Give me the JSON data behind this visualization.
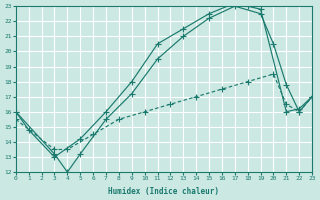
{
  "bg_color": "#cce8e2",
  "grid_color": "#b8d8d0",
  "line_color": "#1a7a6e",
  "xlim": [
    0,
    23
  ],
  "ylim": [
    12,
    23
  ],
  "xticks": [
    0,
    1,
    2,
    3,
    4,
    5,
    6,
    7,
    8,
    9,
    10,
    11,
    12,
    13,
    14,
    15,
    16,
    17,
    18,
    19,
    20,
    21,
    22,
    23
  ],
  "yticks": [
    12,
    13,
    14,
    15,
    16,
    17,
    18,
    19,
    20,
    21,
    22,
    23
  ],
  "xlabel": "Humidex (Indice chaleur)",
  "line1_x": [
    0,
    1,
    3,
    5,
    7,
    9,
    11,
    13,
    15,
    17,
    18,
    19,
    21,
    22,
    23
  ],
  "line1_y": [
    16,
    14.8,
    13.0,
    14.2,
    16.0,
    18.0,
    20.5,
    21.5,
    22.5,
    23.2,
    23.0,
    22.8,
    16.0,
    16.2,
    17.0
  ],
  "line2_x": [
    0,
    3,
    4,
    5,
    7,
    9,
    11,
    13,
    15,
    17,
    19,
    20,
    21,
    22,
    23
  ],
  "line2_y": [
    16,
    13.2,
    12.0,
    13.2,
    15.5,
    17.2,
    19.5,
    21.0,
    22.2,
    23.0,
    22.5,
    20.5,
    17.8,
    16.0,
    17.0
  ],
  "line3_x": [
    0,
    3,
    4,
    6,
    8,
    10,
    12,
    14,
    16,
    18,
    20,
    21,
    22,
    23
  ],
  "line3_y": [
    15.5,
    13.5,
    13.5,
    14.5,
    15.5,
    16.0,
    16.5,
    17.0,
    17.5,
    18.0,
    18.5,
    16.5,
    16.0,
    17.0
  ]
}
